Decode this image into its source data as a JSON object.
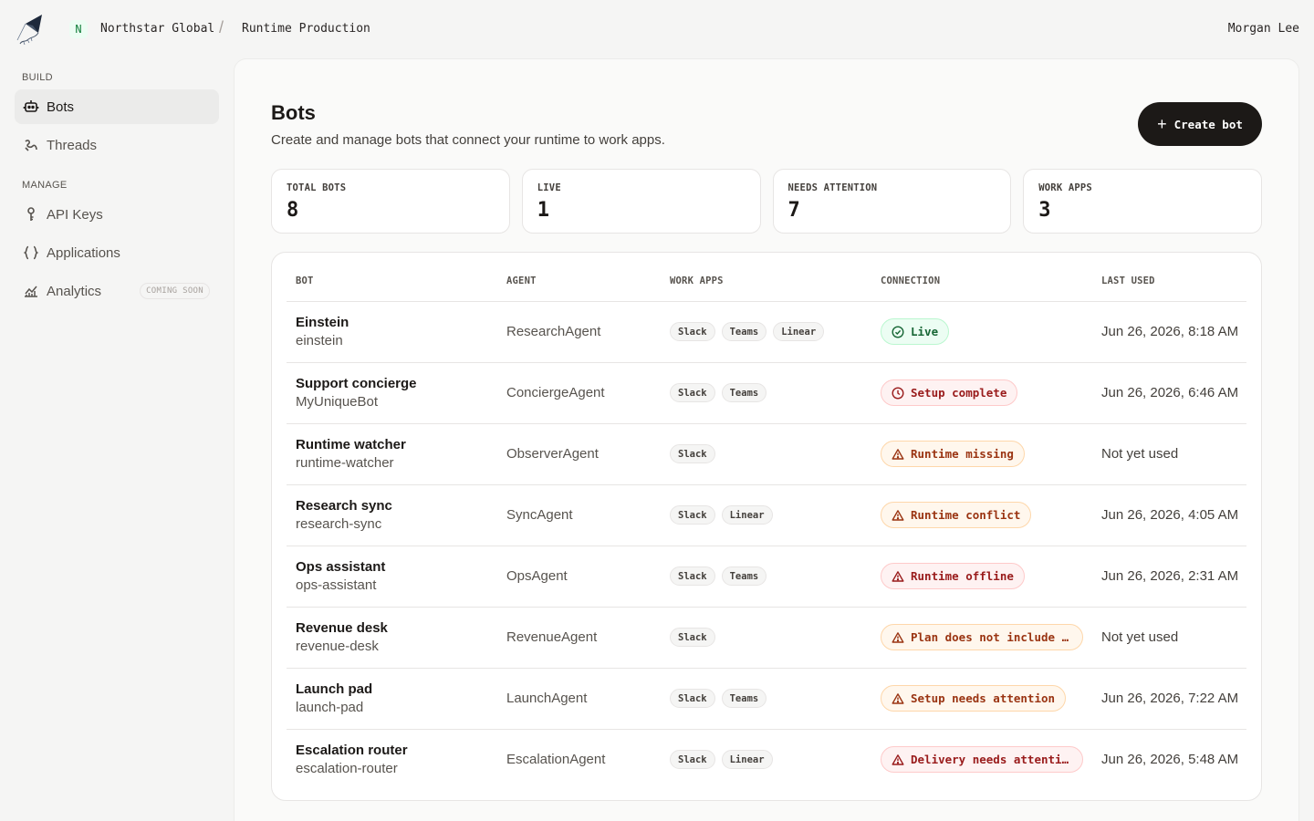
{
  "topbar": {
    "org_initial": "N",
    "org_name": "Northstar Global",
    "separator": "/",
    "project": "Runtime Production",
    "user": "Morgan Lee"
  },
  "sidebar": {
    "build_label": "BUILD",
    "manage_label": "MANAGE",
    "items": [
      {
        "label": "Bots",
        "icon": "bot-icon",
        "active": true
      },
      {
        "label": "Threads",
        "icon": "threads-icon"
      },
      {
        "label": "API Keys",
        "icon": "key-icon"
      },
      {
        "label": "Applications",
        "icon": "braces-icon"
      },
      {
        "label": "Analytics",
        "icon": "analytics-icon",
        "badge": "COMING SOON"
      }
    ]
  },
  "page": {
    "title": "Bots",
    "subtitle": "Create and manage bots that connect your runtime to work apps.",
    "create_label": "Create bot"
  },
  "stats": [
    {
      "label": "TOTAL BOTS",
      "value": "8"
    },
    {
      "label": "LIVE",
      "value": "1"
    },
    {
      "label": "NEEDS ATTENTION",
      "value": "7"
    },
    {
      "label": "WORK APPS",
      "value": "3"
    }
  ],
  "table": {
    "headers": [
      "BOT",
      "AGENT",
      "WORK APPS",
      "CONNECTION",
      "LAST USED"
    ],
    "rows": [
      {
        "name": "Einstein",
        "slug": "einstein",
        "agent": "ResearchAgent",
        "apps": [
          "Slack",
          "Teams",
          "Linear"
        ],
        "status": "Live",
        "status_kind": "live",
        "last_used": "Jun 26, 2026, 8:18 AM"
      },
      {
        "name": "Support concierge",
        "slug": "MyUniqueBot",
        "agent": "ConciergeAgent",
        "apps": [
          "Slack",
          "Teams"
        ],
        "status": "Setup complete",
        "status_kind": "setup",
        "last_used": "Jun 26, 2026, 6:46 AM"
      },
      {
        "name": "Runtime watcher",
        "slug": "runtime-watcher",
        "agent": "ObserverAgent",
        "apps": [
          "Slack"
        ],
        "status": "Runtime missing",
        "status_kind": "warn",
        "last_used": "Not yet used"
      },
      {
        "name": "Research sync",
        "slug": "research-sync",
        "agent": "SyncAgent",
        "apps": [
          "Slack",
          "Linear"
        ],
        "status": "Runtime conflict",
        "status_kind": "warn",
        "last_used": "Jun 26, 2026, 4:05 AM"
      },
      {
        "name": "Ops assistant",
        "slug": "ops-assistant",
        "agent": "OpsAgent",
        "apps": [
          "Slack",
          "Teams"
        ],
        "status": "Runtime offline",
        "status_kind": "err",
        "last_used": "Jun 26, 2026, 2:31 AM"
      },
      {
        "name": "Revenue desk",
        "slug": "revenue-desk",
        "agent": "RevenueAgent",
        "apps": [
          "Slack"
        ],
        "status": "Plan does not include b…",
        "status_kind": "warn",
        "last_used": "Not yet used"
      },
      {
        "name": "Launch pad",
        "slug": "launch-pad",
        "agent": "LaunchAgent",
        "apps": [
          "Slack",
          "Teams"
        ],
        "status": "Setup needs attention",
        "status_kind": "warn",
        "last_used": "Jun 26, 2026, 7:22 AM"
      },
      {
        "name": "Escalation router",
        "slug": "escalation-router",
        "agent": "EscalationAgent",
        "apps": [
          "Slack",
          "Linear"
        ],
        "status": "Delivery needs attention",
        "status_kind": "err",
        "last_used": "Jun 26, 2026, 5:48 AM"
      }
    ]
  },
  "colors": {
    "primary": "#1c1917",
    "live": "#166534",
    "warn": "#9a3412",
    "error": "#991b1b",
    "background": "#f5f5f4"
  }
}
